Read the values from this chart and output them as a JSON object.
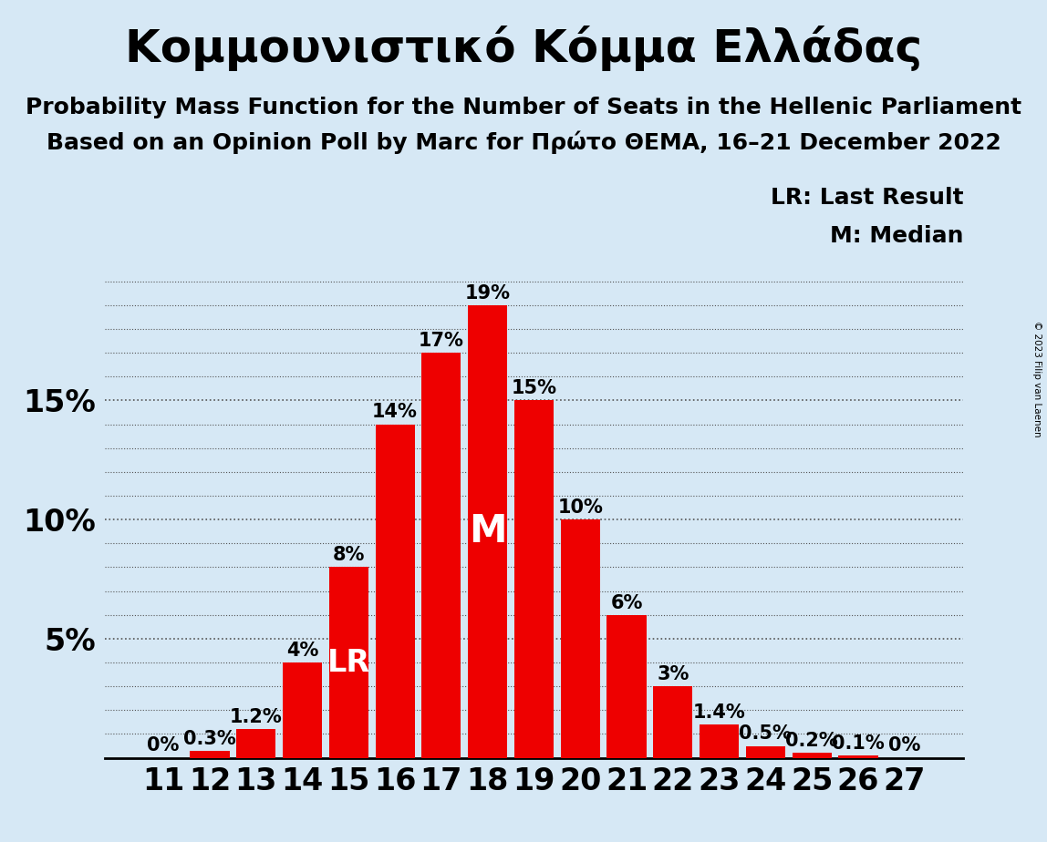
{
  "title": "Κομμουνιστικό Κόμμα Ελλάδας",
  "subtitle1": "Probability Mass Function for the Number of Seats in the Hellenic Parliament",
  "subtitle2": "Based on an Opinion Poll by Marc for Πρώτο ΘΕΜΑ, 16–21 December 2022",
  "copyright": "© 2023 Filip van Laenen",
  "categories": [
    11,
    12,
    13,
    14,
    15,
    16,
    17,
    18,
    19,
    20,
    21,
    22,
    23,
    24,
    25,
    26,
    27
  ],
  "values": [
    0.0,
    0.3,
    1.2,
    4.0,
    8.0,
    14.0,
    17.0,
    19.0,
    15.0,
    10.0,
    6.0,
    3.0,
    1.4,
    0.5,
    0.2,
    0.1,
    0.0
  ],
  "labels": [
    "0%",
    "0.3%",
    "1.2%",
    "4%",
    "8%",
    "14%",
    "17%",
    "19%",
    "15%",
    "10%",
    "6%",
    "3%",
    "1.4%",
    "0.5%",
    "0.2%",
    "0.1%",
    "0%"
  ],
  "bar_color": "#ee0000",
  "background_color": "#d6e8f5",
  "lr_seat": 15,
  "median_seat": 18,
  "lr_label": "LR",
  "median_label": "M",
  "legend_lr": "LR: Last Result",
  "legend_m": "M: Median",
  "ytick_major": [
    5,
    10,
    15
  ],
  "ytick_minor": [
    1,
    2,
    3,
    4,
    6,
    7,
    8,
    9,
    11,
    12,
    13,
    14,
    16,
    17,
    18,
    19,
    20
  ],
  "ylim": [
    0,
    20.5
  ],
  "title_fontsize": 36,
  "subtitle_fontsize": 18,
  "label_fontsize": 15,
  "tick_fontsize": 24,
  "lr_fontsize": 24,
  "m_fontsize": 30,
  "legend_fontsize": 18
}
